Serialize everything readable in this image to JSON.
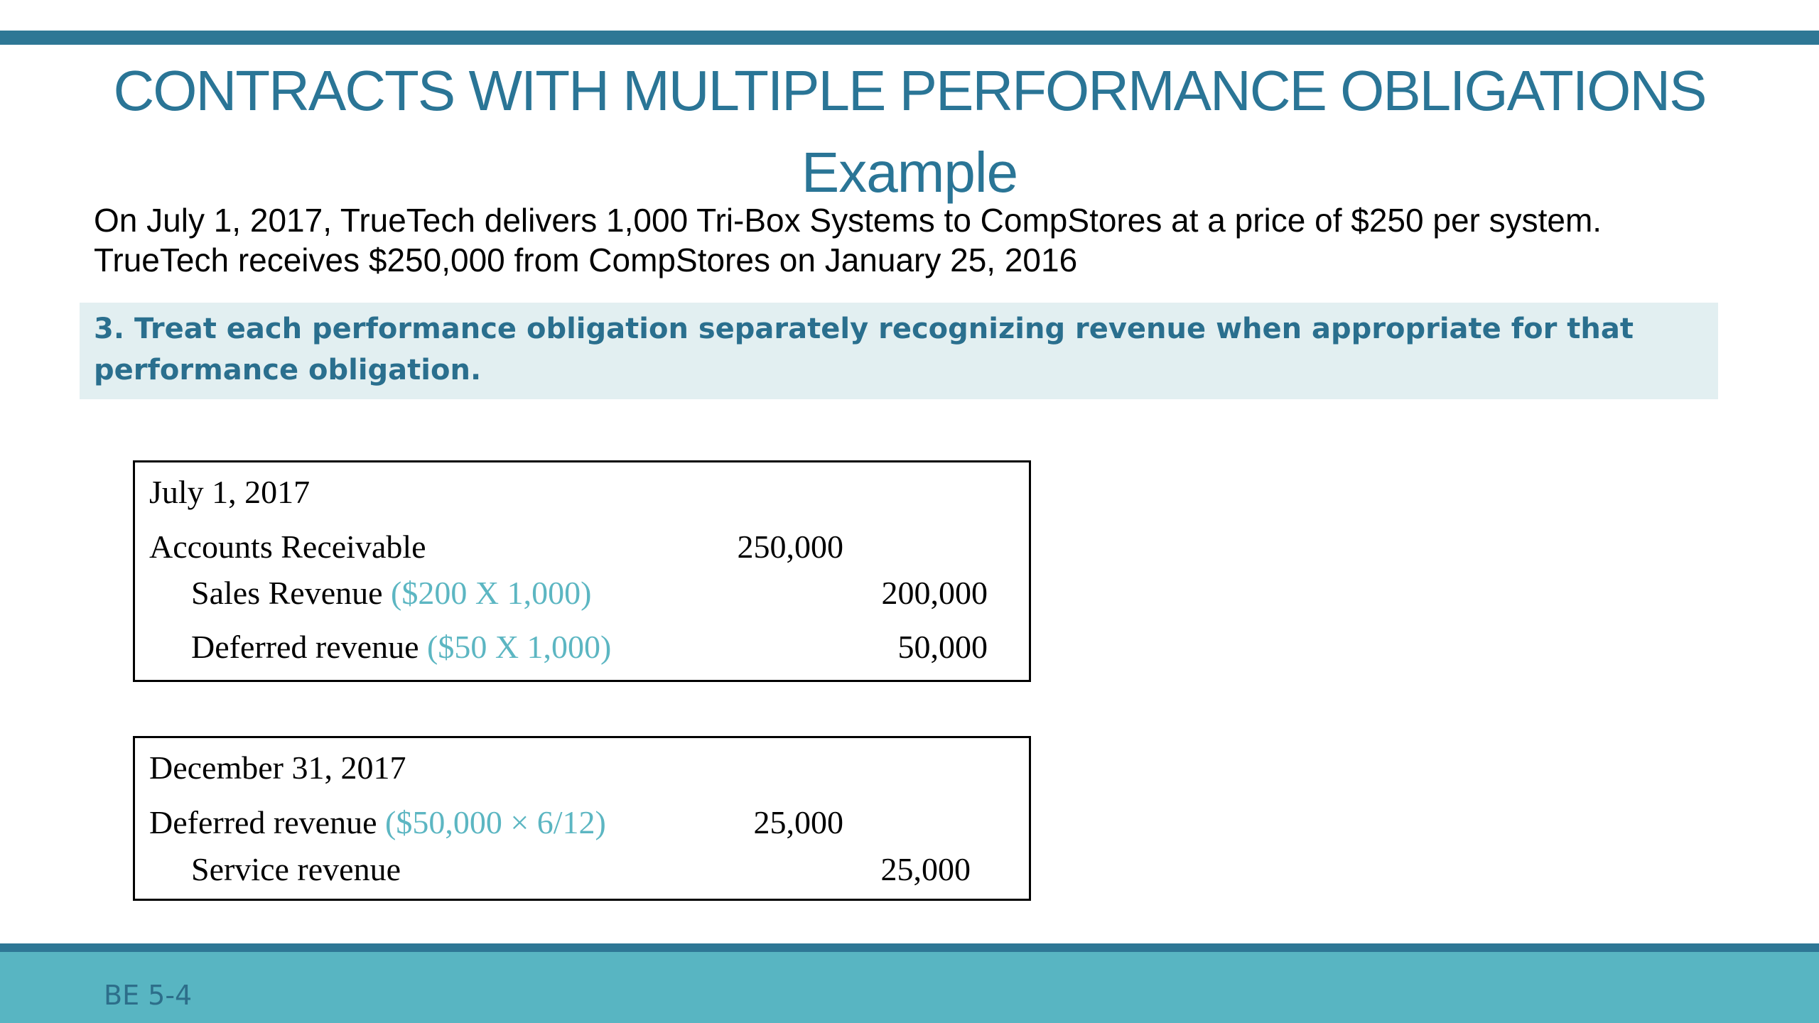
{
  "slide": {
    "title": "CONTRACTS WITH MULTIPLE PERFORMANCE OBLIGATIONS",
    "subtitle": "Example",
    "intro": {
      "line1": "On July 1, 2017, TrueTech delivers 1,000 Tri-Box Systems to CompStores at a price of $250 per system.",
      "line2": "TrueTech receives $250,000 from CompStores on January 25, 2016"
    },
    "step": {
      "text": "3. Treat each performance obligation separately recognizing revenue when appropriate for that performance obligation."
    },
    "entries": [
      {
        "date": "July 1, 2017",
        "lines": [
          {
            "account": "Accounts Receivable",
            "note": "",
            "debit": "250,000",
            "credit": ""
          },
          {
            "account": "Sales Revenue",
            "note": "($200 X 1,000)",
            "debit": "",
            "credit": "200,000"
          },
          {
            "account": "Deferred revenue",
            "note": "($50 X 1,000)",
            "debit": "",
            "credit": "50,000"
          }
        ]
      },
      {
        "date": "December 31, 2017",
        "lines": [
          {
            "account": "Deferred revenue",
            "note": "($50,000 × 6/12)",
            "debit": "25,000",
            "credit": ""
          },
          {
            "account": "Service revenue",
            "note": "",
            "debit": "",
            "credit": "25,000"
          }
        ]
      }
    ],
    "footer": {
      "label": "BE 5-4"
    },
    "colors": {
      "accent_bar": "#2e7795",
      "title": "#2a7596",
      "step_background": "#e2eff1",
      "step_text": "#2a6f8e",
      "note_text": "#5cb6c2",
      "footer_background": "#58b5c2",
      "footer_text": "#2d6e8a"
    }
  }
}
